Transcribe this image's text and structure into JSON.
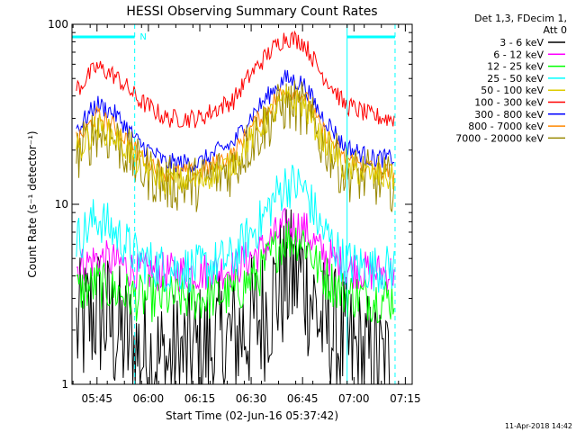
{
  "chart_data": {
    "type": "line",
    "title": "HESSI Observing Summary Count Rates",
    "xlabel": "Start Time (02-Jun-16 05:37:42)",
    "ylabel": "Count Rate (s⁻¹ detector⁻¹)",
    "y_scale": "log",
    "ylim": [
      1,
      100
    ],
    "xlim": [
      "05:37:42",
      "07:17:00"
    ],
    "x_tick_labels": [
      "05:45",
      "06:00",
      "06:15",
      "06:30",
      "06:45",
      "07:00",
      "07:15"
    ],
    "y_tick_labels": [
      "1",
      "10",
      "100"
    ],
    "grid": false,
    "legend_position": "top-right",
    "legend_header": [
      "Det 1,3, FDecim 1,",
      "Att 0"
    ],
    "footer_date": "11-Apr-2018 14:42",
    "series": [
      {
        "name": "3 - 6 keV",
        "color": "#000000",
        "x": [
          "05:40",
          "05:45",
          "05:50",
          "05:57",
          "06:05",
          "06:15",
          "06:25",
          "06:33",
          "06:40",
          "06:45",
          "06:50",
          "06:57",
          "07:05",
          "07:10"
        ],
        "y": [
          2,
          2.6,
          2,
          1.5,
          1.3,
          1.5,
          1.8,
          2.4,
          3.8,
          4,
          2.2,
          1.6,
          1.3,
          1.2
        ]
      },
      {
        "name": "6 - 12 keV",
        "color": "#ff00ff",
        "x": [
          "05:40",
          "05:45",
          "05:50",
          "05:57",
          "06:05",
          "06:15",
          "06:25",
          "06:33",
          "06:40",
          "06:45",
          "06:50",
          "06:57",
          "07:05",
          "07:10"
        ],
        "y": [
          4.5,
          5,
          4.8,
          4.2,
          4.2,
          4.2,
          4.4,
          5.5,
          7.5,
          7.5,
          5.5,
          4.5,
          4.2,
          4.2
        ]
      },
      {
        "name": "12 - 25 keV",
        "color": "#00ff00",
        "x": [
          "05:40",
          "05:45",
          "05:50",
          "05:57",
          "06:05",
          "06:15",
          "06:25",
          "06:33",
          "06:40",
          "06:45",
          "06:50",
          "06:57",
          "07:05",
          "07:10"
        ],
        "y": [
          3.3,
          3.6,
          3.3,
          3.0,
          3.0,
          3.0,
          3.2,
          4.2,
          6.5,
          6.5,
          4.2,
          3.2,
          3.0,
          3.0
        ]
      },
      {
        "name": "25 - 50 keV",
        "color": "#00ffff",
        "x": [
          "05:40",
          "05:45",
          "05:50",
          "05:57",
          "06:05",
          "06:15",
          "06:25",
          "06:33",
          "06:40",
          "06:45",
          "06:50",
          "06:57",
          "07:05",
          "07:10"
        ],
        "y": [
          6.5,
          8.5,
          7,
          5,
          4.4,
          4.4,
          5,
          8,
          13,
          12.5,
          7.5,
          4.8,
          4.4,
          4.4
        ]
      },
      {
        "name": "100 - 300 keV",
        "color": "#ff0000",
        "x": [
          "05:40",
          "05:45",
          "05:50",
          "05:57",
          "06:05",
          "06:15",
          "06:25",
          "06:33",
          "06:40",
          "06:45",
          "06:50",
          "06:57",
          "07:05",
          "07:10"
        ],
        "y": [
          45,
          58,
          52,
          38,
          30,
          30,
          38,
          62,
          85,
          80,
          55,
          36,
          31,
          30
        ]
      },
      {
        "name": "300 - 800 keV",
        "color": "#0000ff",
        "x": [
          "05:40",
          "05:45",
          "05:50",
          "05:57",
          "06:05",
          "06:15",
          "06:25",
          "06:33",
          "06:40",
          "06:45",
          "06:50",
          "06:57",
          "07:05",
          "07:10"
        ],
        "y": [
          27,
          36,
          32,
          22,
          17,
          17,
          22,
          36,
          50,
          47,
          32,
          21,
          18,
          18
        ]
      },
      {
        "name": "800 - 7000 keV",
        "color": "#ff8800",
        "x": [
          "05:40",
          "05:45",
          "05:50",
          "05:57",
          "06:05",
          "06:15",
          "06:25",
          "06:33",
          "06:40",
          "06:45",
          "06:50",
          "06:57",
          "07:05",
          "07:10"
        ],
        "y": [
          23,
          31,
          27,
          19,
          15,
          15,
          19,
          31,
          43,
          41,
          27,
          18,
          16,
          15
        ]
      },
      {
        "name": "7000 - 20000 keV",
        "color": "#998800",
        "x": [
          "05:40",
          "05:45",
          "05:50",
          "05:57",
          "06:05",
          "06:15",
          "06:25",
          "06:33",
          "06:40",
          "06:45",
          "06:50",
          "06:57",
          "07:05",
          "07:10"
        ],
        "y": [
          19,
          26,
          23,
          16,
          13,
          13,
          16,
          26,
          36,
          34,
          23,
          15,
          14,
          13
        ]
      },
      {
        "name": "50 - 100 keV",
        "color": "#ddcc00",
        "x": [
          "05:40",
          "05:45",
          "05:50",
          "05:57",
          "06:05",
          "06:15",
          "06:25",
          "06:33",
          "06:40",
          "06:45",
          "06:50",
          "06:57",
          "07:05",
          "07:10"
        ],
        "y": [
          20,
          27,
          24,
          17,
          13.5,
          13.5,
          17,
          27,
          38,
          36,
          24,
          16,
          14.5,
          14
        ]
      }
    ],
    "legend_order": [
      "3 - 6 keV",
      "6 - 12 keV",
      "12 - 25 keV",
      "25 - 50 keV",
      "50 - 100 keV",
      "100 - 300 keV",
      "300 - 800 keV",
      "800 - 7000 keV",
      "7000 - 20000 keV"
    ],
    "annotations": {
      "night_bars": [
        [
          "05:37:42",
          "05:56:00"
        ],
        [
          "06:58:00",
          "07:12:00"
        ]
      ],
      "night_color": "#00ffff",
      "saa_marker": {
        "label": "N",
        "time": "05:57:30"
      },
      "solid_boundaries": [
        "06:58:00"
      ],
      "dashed_boundaries": [
        "05:56:00",
        "07:12:00"
      ]
    }
  }
}
